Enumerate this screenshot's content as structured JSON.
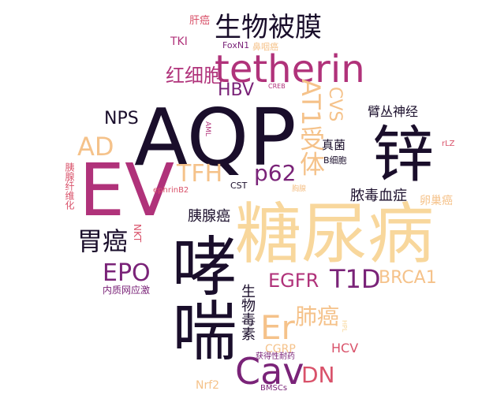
{
  "words": {
    "w01": {
      "text": "AQP",
      "color": "#1a0e2b"
    },
    "w02": {
      "text": "糖尿病",
      "color": "#f8d79c"
    },
    "w03": {
      "text": "EV",
      "color": "#b0327a"
    },
    "w04": {
      "text": "哮喘",
      "color": "#1a0e2b"
    },
    "w05": {
      "text": "锌",
      "color": "#1a0e2b"
    },
    "w06": {
      "text": "tetherin",
      "color": "#b0327a"
    },
    "w07": {
      "text": "生物被膜",
      "color": "#1a0e2b"
    },
    "w08": {
      "text": "Cav",
      "color": "#7a2378"
    },
    "w09": {
      "text": "Er",
      "color": "#f5c28a"
    },
    "w10": {
      "text": "AT1受体",
      "color": "#f5c28a"
    },
    "w11": {
      "text": "T1D",
      "color": "#7a2378"
    },
    "w12": {
      "text": "EGFR",
      "color": "#b0327a"
    },
    "w13": {
      "text": "AD",
      "color": "#f5c28a"
    },
    "w14": {
      "text": "TFH",
      "color": "#f5c28a"
    },
    "w15": {
      "text": "p62",
      "color": "#7a2378"
    },
    "w16": {
      "text": "CVS",
      "color": "#f5c28a"
    },
    "w17": {
      "text": "胃癌",
      "color": "#1a0e2b"
    },
    "w18": {
      "text": "EPO",
      "color": "#7a2378"
    },
    "w19": {
      "text": "BRCA1",
      "color": "#f5c28a"
    },
    "w20": {
      "text": "DN",
      "color": "#d9526a"
    },
    "w21": {
      "text": "肺癌",
      "color": "#f5c28a"
    },
    "w22": {
      "text": "生物毒素",
      "color": "#1a0e2b"
    },
    "w23": {
      "text": "红细胞",
      "color": "#b0327a"
    },
    "w24": {
      "text": "HBV",
      "color": "#7a2378"
    },
    "w25": {
      "text": "NPS",
      "color": "#1a0e2b"
    },
    "w26": {
      "text": "胰腺癌",
      "color": "#1a0e2b"
    },
    "w27": {
      "text": "脓毒血症",
      "color": "#1a0e2b"
    },
    "w28": {
      "text": "臂丛神经",
      "color": "#1a0e2b"
    },
    "w29": {
      "text": "真菌",
      "color": "#1a0e2b"
    },
    "w30": {
      "text": "卵巢癌",
      "color": "#f5c28a"
    },
    "w31": {
      "text": "HCV",
      "color": "#d9526a"
    },
    "w32": {
      "text": "Nrf2",
      "color": "#f5c28a"
    },
    "w33": {
      "text": "CGRP",
      "color": "#f5c28a"
    },
    "w34": {
      "text": "获得性耐药",
      "color": "#7a2378"
    },
    "w35": {
      "text": "BMSCs",
      "color": "#7a2378"
    },
    "w36": {
      "text": "内质网应激",
      "color": "#7a2378"
    },
    "w37": {
      "text": "NKT",
      "color": "#d9526a"
    },
    "w38": {
      "text": "胰腺纤维化",
      "color": "#d9526a"
    },
    "w39": {
      "text": "ephrinB2",
      "color": "#d9526a"
    },
    "w40": {
      "text": "CST",
      "color": "#1a0e2b"
    },
    "w41": {
      "text": "TKI",
      "color": "#b0327a"
    },
    "w42": {
      "text": "肝癌",
      "color": "#d9526a"
    },
    "w43": {
      "text": "FoxN1",
      "color": "#7a2378"
    },
    "w44": {
      "text": "鼻咽癌",
      "color": "#f5c28a"
    },
    "w45": {
      "text": "CREB",
      "color": "#b0327a"
    },
    "w46": {
      "text": "AML",
      "color": "#b0327a"
    },
    "w47": {
      "text": "B细胞",
      "color": "#1a0e2b"
    },
    "w48": {
      "text": "rLZ",
      "color": "#d9526a"
    },
    "w49": {
      "text": "胸腺",
      "color": "#f5c28a"
    },
    "w50": {
      "text": "HPL",
      "color": "#f8d79c"
    }
  }
}
